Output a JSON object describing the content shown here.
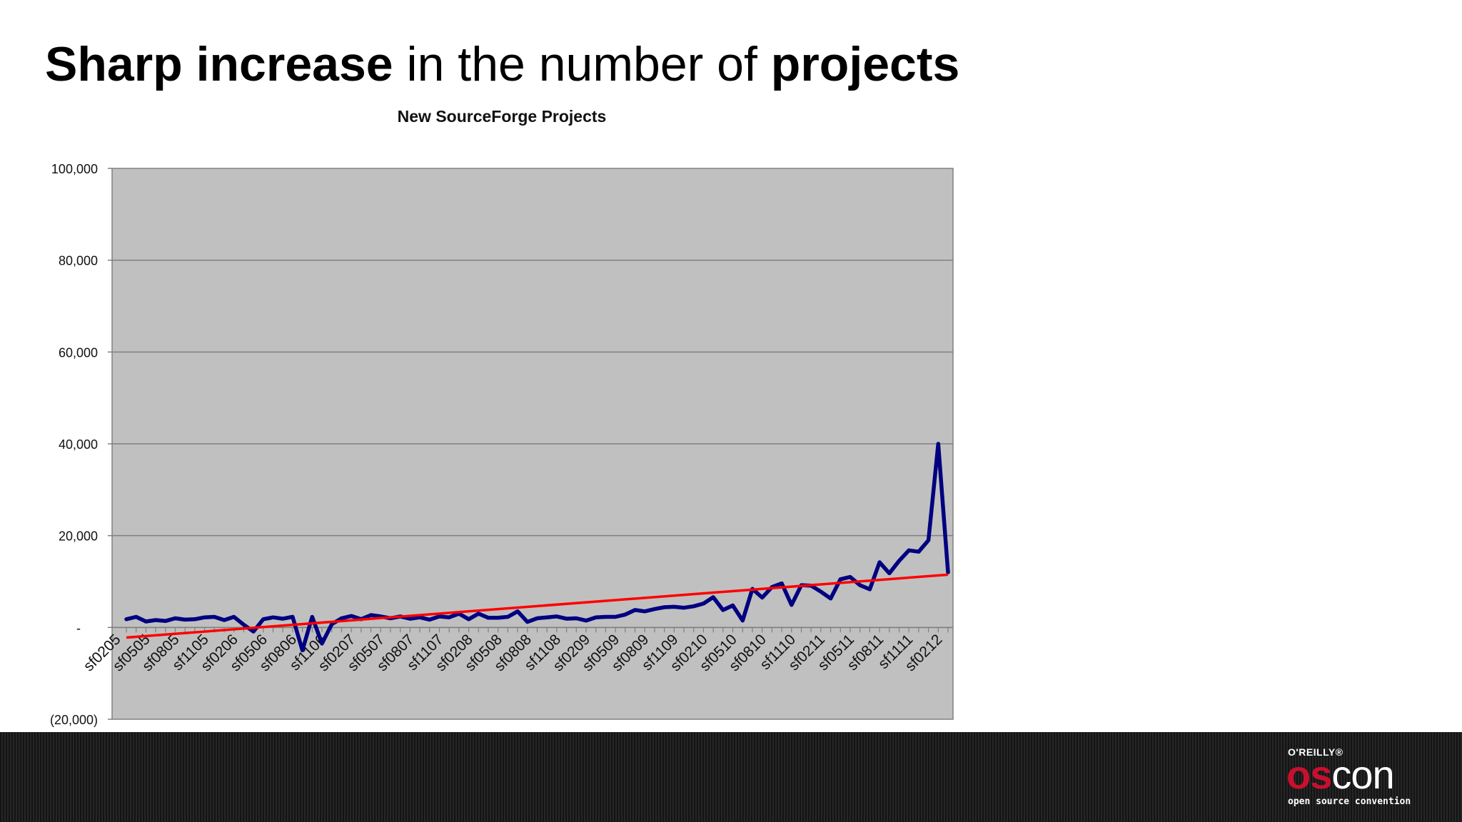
{
  "slide": {
    "title_bold_1": "Sharp increase",
    "title_normal": " in the number of ",
    "title_bold_2": "projects"
  },
  "logo": {
    "publisher": "O'REILLY®",
    "name_os": "os",
    "name_con": "con",
    "tagline": "open source convention"
  },
  "colors": {
    "series_line": "#000080",
    "trend_line": "#ff0000",
    "plot_background": "#c0c0c0",
    "footer_background": "#1a1a1a",
    "logo_accent": "#c8102e"
  },
  "chart_data": {
    "type": "line",
    "title": "New SourceForge Projects",
    "xlabel": "",
    "ylabel": "",
    "ylim": [
      -20000,
      100000
    ],
    "y_ticks": [
      {
        "value": 100000,
        "label": "100,000"
      },
      {
        "value": 80000,
        "label": "80,000"
      },
      {
        "value": 60000,
        "label": "60,000"
      },
      {
        "value": 40000,
        "label": "40,000"
      },
      {
        "value": 20000,
        "label": "20,000"
      },
      {
        "value": 0,
        "label": "-"
      },
      {
        "value": -20000,
        "label": "(20,000)"
      }
    ],
    "x_tick_labels": [
      "sf0205",
      "sf0505",
      "sf0805",
      "sf1105",
      "sf0206",
      "sf0506",
      "sf0806",
      "sf1106",
      "sf0207",
      "sf0507",
      "sf0807",
      "sf1107",
      "sf0208",
      "sf0508",
      "sf0808",
      "sf1108",
      "sf0209",
      "sf0509",
      "sf0809",
      "sf1109",
      "sf0210",
      "sf0510",
      "sf0810",
      "sf1110",
      "sf0211",
      "sf0511",
      "sf0811",
      "sf1111",
      "sf0212"
    ],
    "grid": true,
    "legend": "none",
    "series": [
      {
        "values": [
          1800,
          2300,
          1300,
          1600,
          1400,
          2000,
          1700,
          1800,
          2200,
          2300,
          1600,
          2300,
          600,
          -900,
          1800,
          2200,
          1900,
          2300,
          -5000,
          2300,
          -3500,
          700,
          2000,
          2500,
          1800,
          2700,
          2400,
          2000,
          2400,
          1900,
          2200,
          1700,
          2400,
          2200,
          3000,
          1800,
          3000,
          2100,
          2100,
          2300,
          3500,
          1200,
          2000,
          2200,
          2400,
          1900,
          2000,
          1500,
          2200,
          2300,
          2300,
          2800,
          3800,
          3500,
          4000,
          4400,
          4500,
          4300,
          4600,
          5200,
          6600,
          3800,
          4800,
          1500,
          8400,
          6500,
          8800,
          9600,
          4900,
          9200,
          9100,
          7800,
          6300,
          10500,
          11000,
          9200,
          8300,
          14200,
          11800,
          14500,
          16800,
          16500,
          19000,
          40000,
          12000
        ]
      },
      {
        "values": [
          -2200,
          11500
        ],
        "trend": true
      }
    ]
  }
}
